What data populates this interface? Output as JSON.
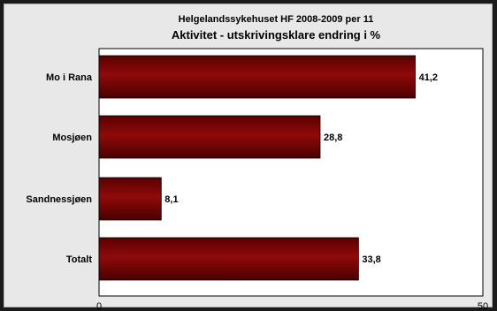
{
  "chart_data": {
    "type": "bar",
    "orientation": "horizontal",
    "title": "Helgelandssykehuset HF 2008-2009 per 11",
    "subtitle": "Aktivitet - utskrivingsklare endring i %",
    "categories": [
      "Mo i Rana",
      "Mosjøen",
      "Sandnessjøen",
      "Totalt"
    ],
    "values": [
      41.2,
      28.8,
      8.1,
      33.8
    ],
    "data_labels": [
      "41,2",
      "28,8",
      "8,1",
      "33,8"
    ],
    "xlim": [
      0,
      50
    ],
    "ticks": [
      "0",
      "50"
    ],
    "bar_color": "#8b0000",
    "grid": false,
    "legend": "none"
  }
}
